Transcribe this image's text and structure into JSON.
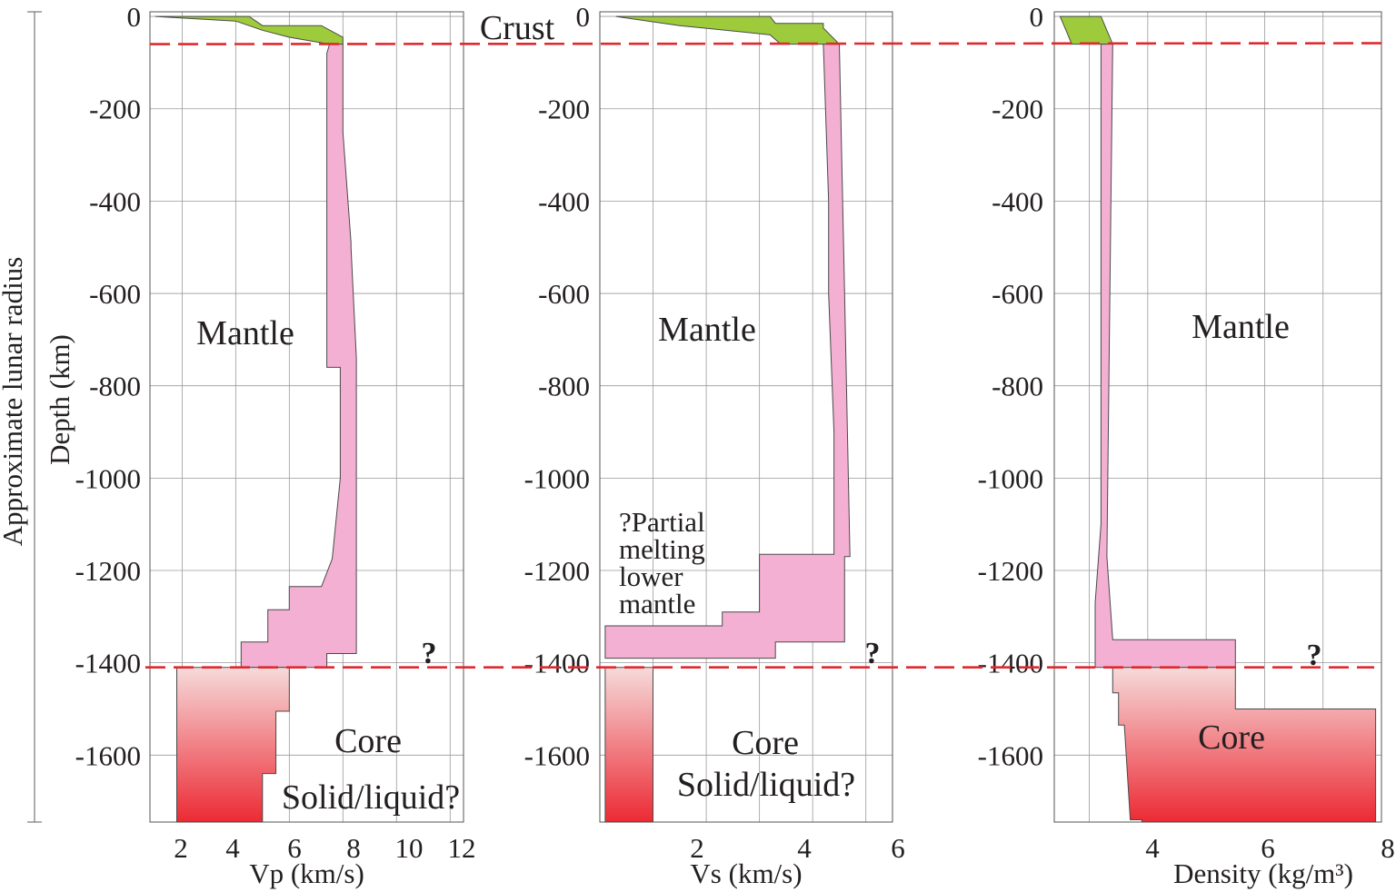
{
  "figure": {
    "side_label": "Approximate lunar radius",
    "boundary_color": "#e0282f",
    "crust_color": "#9ecb3c",
    "mantle_color": "#f4b0d2",
    "core_gradient": [
      "#f6dada",
      "#ec2a34"
    ]
  },
  "chart_data": [
    {
      "type": "area",
      "xlabel": "Vp (km/s)",
      "ylabel": "Depth (km)",
      "xlim": [
        0.8,
        12.5
      ],
      "ylim": [
        -1745,
        10
      ],
      "xticks": [
        "2",
        "4",
        "6",
        "8",
        "10",
        "12"
      ],
      "yticks": [
        "0",
        "-200",
        "-400",
        "-600",
        "-800",
        "-1000",
        "-1200",
        "-1400",
        "-1600"
      ],
      "crust": [
        [
          1,
          0
        ],
        [
          4.5,
          0
        ],
        [
          5,
          -20
        ],
        [
          7.2,
          -20
        ],
        [
          8,
          -45
        ],
        [
          8,
          -60
        ],
        [
          7.5,
          -60
        ],
        [
          6,
          -45
        ],
        [
          5,
          -30
        ],
        [
          4,
          -10
        ],
        [
          1,
          0
        ]
      ],
      "mantle": [
        [
          7.5,
          -60
        ],
        [
          8,
          -60
        ],
        [
          8,
          -250
        ],
        [
          8.3,
          -490
        ],
        [
          8.3,
          -500
        ],
        [
          8.5,
          -740
        ],
        [
          8.5,
          -1380
        ],
        [
          7.4,
          -1380
        ],
        [
          7.4,
          -1410
        ],
        [
          4.2,
          -1410
        ],
        [
          4.2,
          -1355
        ],
        [
          5.2,
          -1355
        ],
        [
          5.2,
          -1285
        ],
        [
          6,
          -1285
        ],
        [
          6,
          -1235
        ],
        [
          7.2,
          -1235
        ],
        [
          7.6,
          -1175
        ],
        [
          7.9,
          -1000
        ],
        [
          7.9,
          -760
        ],
        [
          7.4,
          -760
        ],
        [
          7.4,
          -80
        ],
        [
          7.5,
          -60
        ]
      ],
      "core": [
        [
          1.8,
          -1410
        ],
        [
          6,
          -1410
        ],
        [
          6,
          -1505
        ],
        [
          5.5,
          -1505
        ],
        [
          5.5,
          -1640
        ],
        [
          5,
          -1640
        ],
        [
          5,
          -1745
        ],
        [
          1.8,
          -1745
        ]
      ],
      "boundaries": [
        -60,
        -1410
      ],
      "zone_labels": {
        "crust": "Crust",
        "mantle": "Mantle",
        "core": "Core",
        "core_state": "Solid/liquid?",
        "question": "?"
      }
    },
    {
      "type": "area",
      "xlabel": "Vs (km/s)",
      "ylim": [
        -1745,
        10
      ],
      "xlim": [
        0,
        5.5
      ],
      "xticks": [
        "2",
        "4",
        "6"
      ],
      "yticks": [
        "0",
        "-200",
        "-400",
        "-600",
        "-800",
        "-1000",
        "-1200",
        "-1400",
        "-1600"
      ],
      "crust": [
        [
          0.3,
          0
        ],
        [
          3.2,
          0
        ],
        [
          3.3,
          -15
        ],
        [
          4.2,
          -15
        ],
        [
          4.2,
          -25
        ],
        [
          4.5,
          -60
        ],
        [
          3.4,
          -60
        ],
        [
          3.2,
          -40
        ],
        [
          2.8,
          -35
        ],
        [
          1.5,
          -20
        ],
        [
          0.3,
          0
        ]
      ],
      "mantle": [
        [
          4.2,
          -60
        ],
        [
          4.5,
          -60
        ],
        [
          4.6,
          -600
        ],
        [
          4.7,
          -1170
        ],
        [
          4.6,
          -1170
        ],
        [
          4.6,
          -1355
        ],
        [
          3.3,
          -1355
        ],
        [
          3.3,
          -1390
        ],
        [
          0.1,
          -1390
        ],
        [
          0.1,
          -1320
        ],
        [
          2.3,
          -1320
        ],
        [
          2.3,
          -1290
        ],
        [
          3,
          -1290
        ],
        [
          3,
          -1165
        ],
        [
          4.4,
          -1165
        ],
        [
          4.4,
          -900
        ],
        [
          4.3,
          -600
        ],
        [
          4.3,
          -400
        ],
        [
          4.2,
          -60
        ]
      ],
      "core": [
        [
          0.1,
          -1410
        ],
        [
          1,
          -1410
        ],
        [
          1,
          -1745
        ],
        [
          0.1,
          -1745
        ]
      ],
      "boundaries": [
        -60,
        -1410
      ],
      "zone_labels": {
        "crust": "Crust",
        "mantle": "Mantle",
        "core": "Core",
        "core_state": "Solid/liquid?",
        "question": "?"
      },
      "annotation": [
        "?Partial",
        "melting",
        "lower",
        "mantle"
      ]
    },
    {
      "type": "area",
      "xlabel": "Density (kg/m³)",
      "xlim": [
        2.4,
        8
      ],
      "ylim": [
        -1745,
        10
      ],
      "xticks": [
        "4",
        "6",
        "8"
      ],
      "yticks": [
        "0",
        "-200",
        "-400",
        "-600",
        "-800",
        "-1000",
        "-1200",
        "-1400",
        "-1600"
      ],
      "crust": [
        [
          2.5,
          0
        ],
        [
          3.2,
          0
        ],
        [
          3.4,
          -60
        ],
        [
          2.7,
          -60
        ],
        [
          2.6,
          -30
        ],
        [
          2.5,
          0
        ]
      ],
      "mantle": [
        [
          3.2,
          -60
        ],
        [
          3.4,
          -60
        ],
        [
          3.3,
          -1170
        ],
        [
          3.4,
          -1350
        ],
        [
          5.5,
          -1350
        ],
        [
          5.5,
          -1410
        ],
        [
          3.1,
          -1410
        ],
        [
          3.1,
          -1270
        ],
        [
          3.2,
          -1100
        ],
        [
          3.2,
          -300
        ],
        [
          3.2,
          -60
        ]
      ],
      "core": [
        [
          3.4,
          -1410
        ],
        [
          5.5,
          -1410
        ],
        [
          5.5,
          -1500
        ],
        [
          7.9,
          -1500
        ],
        [
          7.9,
          -1745
        ],
        [
          3.9,
          -1745
        ],
        [
          3.9,
          -1740
        ],
        [
          3.7,
          -1740
        ],
        [
          3.6,
          -1535
        ],
        [
          3.5,
          -1535
        ],
        [
          3.5,
          -1465
        ],
        [
          3.4,
          -1465
        ]
      ],
      "boundaries": [
        -60,
        -1410
      ],
      "zone_labels": {
        "mantle": "Mantle",
        "core": "Core",
        "question": "?"
      }
    }
  ]
}
